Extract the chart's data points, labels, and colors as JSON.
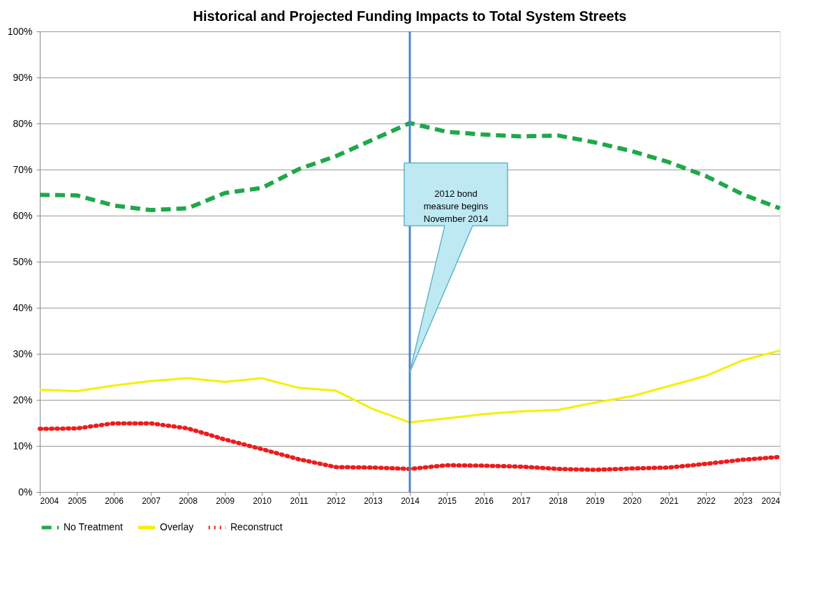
{
  "chart_data": {
    "type": "line",
    "title": "Historical and Projected Funding Impacts to Total System Streets",
    "x": [
      2004,
      2005,
      2006,
      2007,
      2008,
      2009,
      2010,
      2011,
      2012,
      2013,
      2014,
      2015,
      2016,
      2017,
      2018,
      2019,
      2020,
      2021,
      2022,
      2023,
      2024
    ],
    "series": [
      {
        "name": "No Treatment",
        "color": "#1fa84a",
        "line_style": "dashed",
        "values": [
          64.5,
          64.4,
          62.2,
          61.2,
          61.6,
          64.9,
          66.0,
          70.1,
          72.9,
          76.5,
          80.1,
          78.2,
          77.6,
          77.2,
          77.4,
          75.9,
          74.0,
          71.6,
          68.6,
          64.6,
          61.6
        ]
      },
      {
        "name": "Overlay",
        "color": "#f5f000",
        "line_style": "solid",
        "values": [
          22.2,
          21.9,
          23.1,
          24.1,
          24.7,
          23.9,
          24.7,
          22.6,
          22.0,
          18.0,
          15.1,
          16.0,
          16.9,
          17.5,
          17.8,
          19.4,
          20.8,
          23.0,
          25.2,
          28.6,
          30.7
        ]
      },
      {
        "name": "Reconstruct",
        "color": "#ee1c1c",
        "line_style": "dotted",
        "values": [
          13.7,
          13.8,
          14.9,
          14.9,
          13.8,
          11.4,
          9.3,
          7.1,
          5.4,
          5.3,
          5.0,
          5.8,
          5.7,
          5.5,
          5.0,
          4.8,
          5.1,
          5.3,
          6.1,
          7.0,
          7.6
        ]
      }
    ],
    "xlim": [
      2004,
      2024
    ],
    "xticks": [
      2004,
      2005,
      2006,
      2007,
      2008,
      2009,
      2010,
      2011,
      2012,
      2013,
      2014,
      2015,
      2016,
      2017,
      2018,
      2019,
      2020,
      2021,
      2022,
      2023,
      2024
    ],
    "ylim": [
      0,
      100
    ],
    "yticks": [
      {
        "value": 0,
        "label": "0%"
      },
      {
        "value": 10,
        "label": "10%"
      },
      {
        "value": 20,
        "label": "20%"
      },
      {
        "value": 30,
        "label": "30%"
      },
      {
        "value": 40,
        "label": "40%"
      },
      {
        "value": 50,
        "label": "50%"
      },
      {
        "value": 60,
        "label": "60%"
      },
      {
        "value": 70,
        "label": "70%"
      },
      {
        "value": 80,
        "label": "80%"
      },
      {
        "value": 90,
        "label": "90%"
      },
      {
        "value": 100,
        "label": "100%"
      }
    ],
    "ref_lines": [
      {
        "axis": "x",
        "value": 2014,
        "color": "#4a86c8"
      }
    ],
    "annotations": [
      "2012 bond measure begins November 2014"
    ],
    "grid": "y",
    "legend": "bottom"
  }
}
